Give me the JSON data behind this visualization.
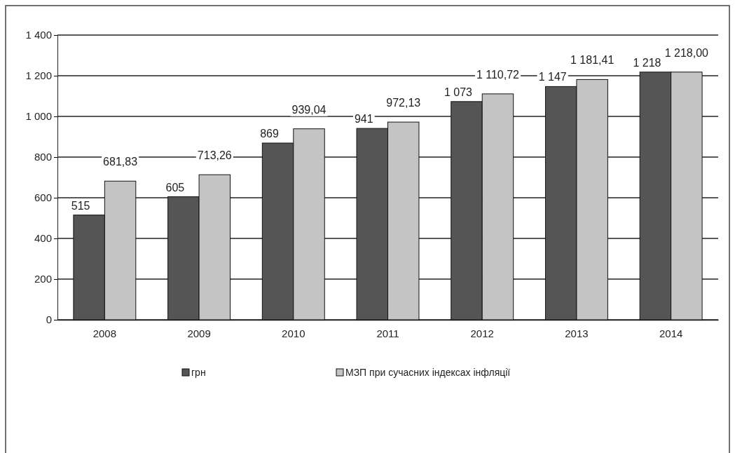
{
  "chart_data": {
    "type": "bar",
    "categories": [
      "2008",
      "2009",
      "2010",
      "2011",
      "2012",
      "2013",
      "2014"
    ],
    "series": [
      {
        "name": "грн",
        "color": "#555555",
        "values": [
          515,
          605,
          869,
          941,
          1073,
          1147,
          1218
        ],
        "value_labels": [
          "515",
          "605",
          "869",
          "941",
          "1 073",
          "1 147",
          "1 218"
        ]
      },
      {
        "name": "МЗП при сучасних індексах інфляції",
        "color": "#c4c4c4",
        "values": [
          681.83,
          713.26,
          939.04,
          972.13,
          1110.72,
          1181.41,
          1218.0
        ],
        "value_labels": [
          "681,83",
          "713,26",
          "939,04",
          "972,13",
          "1 110,72",
          "1 181,41",
          "1 218,00"
        ]
      }
    ],
    "ylim": [
      0,
      1400
    ],
    "yticks": [
      0,
      200,
      400,
      600,
      800,
      {
        "value": 1000,
        "label": "1 000"
      },
      {
        "value": 1200,
        "label": "1 200"
      },
      {
        "value": 1400,
        "label": "1 400"
      }
    ],
    "grid": "y",
    "legend": "bottom"
  }
}
